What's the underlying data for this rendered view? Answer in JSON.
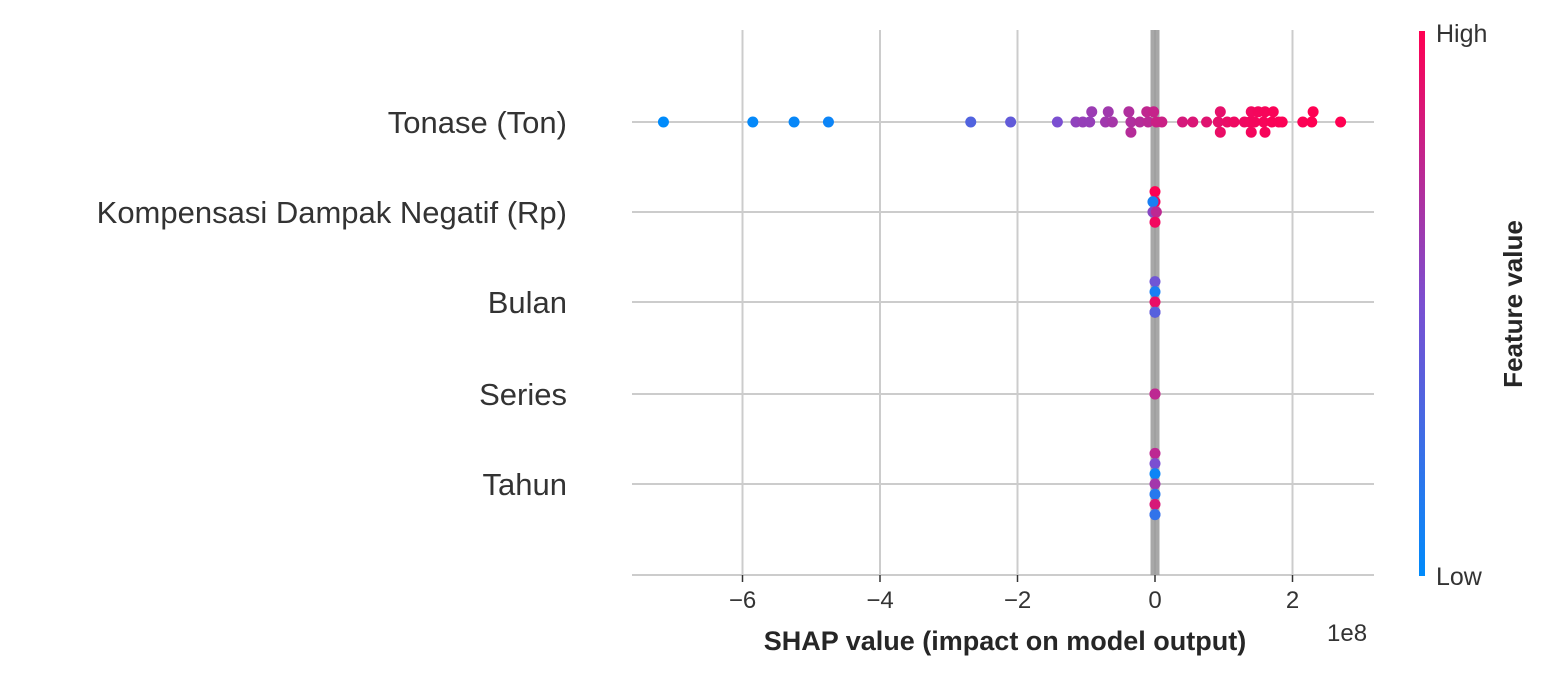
{
  "chart_data": {
    "type": "scatter",
    "subtype": "shap-beeswarm",
    "xlabel": "SHAP value (impact on model output)",
    "x_offset_text": "1e8",
    "x_scale": 100000000,
    "xlim": [
      -7.5,
      3.2
    ],
    "x_ticks": [
      -6,
      -4,
      -2,
      0,
      2
    ],
    "x_tick_labels": [
      "−6",
      "−4",
      "−2",
      "0",
      "2"
    ],
    "grid": true,
    "colors": {
      "low": "#008bfb",
      "high": "#ff0052",
      "zero_line": "#999999",
      "grid": "#cccccc",
      "axis": "#cccccc"
    },
    "colorbar": {
      "title": "Feature value",
      "high_label": "High",
      "low_label": "Low"
    },
    "features": [
      {
        "name": "Tonase (Ton)",
        "points": [
          {
            "x": -7.15,
            "y": 0,
            "v": 0.0
          },
          {
            "x": -5.85,
            "y": 0,
            "v": 0.02
          },
          {
            "x": -5.25,
            "y": 0,
            "v": 0.03
          },
          {
            "x": -4.75,
            "y": 0,
            "v": 0.05
          },
          {
            "x": -2.68,
            "y": 0,
            "v": 0.33
          },
          {
            "x": -2.1,
            "y": 0,
            "v": 0.4
          },
          {
            "x": -1.42,
            "y": 0,
            "v": 0.5
          },
          {
            "x": -1.15,
            "y": 0,
            "v": 0.58
          },
          {
            "x": -1.05,
            "y": 0,
            "v": 0.6
          },
          {
            "x": -0.95,
            "y": 0,
            "v": 0.6
          },
          {
            "x": -0.92,
            "y": 1,
            "v": 0.62
          },
          {
            "x": -0.68,
            "y": 1,
            "v": 0.64
          },
          {
            "x": -0.72,
            "y": 0,
            "v": 0.64
          },
          {
            "x": -0.62,
            "y": 0,
            "v": 0.66
          },
          {
            "x": -0.38,
            "y": 1,
            "v": 0.7
          },
          {
            "x": -0.35,
            "y": 0,
            "v": 0.7
          },
          {
            "x": -0.35,
            "y": -1,
            "v": 0.72
          },
          {
            "x": -0.22,
            "y": 0,
            "v": 0.72
          },
          {
            "x": -0.1,
            "y": 0,
            "v": 0.74
          },
          {
            "x": -0.12,
            "y": 1,
            "v": 0.76
          },
          {
            "x": -0.02,
            "y": 1,
            "v": 0.78
          },
          {
            "x": 0.02,
            "y": 0,
            "v": 0.8
          },
          {
            "x": 0.1,
            "y": 0,
            "v": 0.8
          },
          {
            "x": 0.4,
            "y": 0,
            "v": 0.84
          },
          {
            "x": 0.55,
            "y": 0,
            "v": 0.86
          },
          {
            "x": 0.75,
            "y": 0,
            "v": 0.88
          },
          {
            "x": 0.92,
            "y": 0,
            "v": 0.9
          },
          {
            "x": 0.95,
            "y": 1,
            "v": 0.9
          },
          {
            "x": 0.95,
            "y": -1,
            "v": 0.92
          },
          {
            "x": 1.05,
            "y": 0,
            "v": 0.92
          },
          {
            "x": 1.15,
            "y": 0,
            "v": 0.94
          },
          {
            "x": 1.3,
            "y": 0,
            "v": 0.94
          },
          {
            "x": 1.38,
            "y": 0,
            "v": 0.95
          },
          {
            "x": 1.4,
            "y": 1,
            "v": 0.95
          },
          {
            "x": 1.45,
            "y": 0,
            "v": 0.96
          },
          {
            "x": 1.5,
            "y": 1,
            "v": 0.96
          },
          {
            "x": 1.4,
            "y": -1,
            "v": 0.96
          },
          {
            "x": 1.6,
            "y": 1,
            "v": 0.97
          },
          {
            "x": 1.58,
            "y": 0,
            "v": 0.97
          },
          {
            "x": 1.6,
            "y": -1,
            "v": 0.97
          },
          {
            "x": 1.7,
            "y": 0,
            "v": 0.98
          },
          {
            "x": 1.72,
            "y": 1,
            "v": 0.98
          },
          {
            "x": 1.8,
            "y": 0,
            "v": 0.98
          },
          {
            "x": 1.85,
            "y": 0,
            "v": 0.99
          },
          {
            "x": 2.15,
            "y": 0,
            "v": 0.99
          },
          {
            "x": 2.28,
            "y": 0,
            "v": 1.0
          },
          {
            "x": 2.3,
            "y": 1,
            "v": 1.0
          },
          {
            "x": 2.7,
            "y": 0,
            "v": 1.0
          }
        ]
      },
      {
        "name": "Kompensasi Dampak Negatif (Rp)",
        "points": [
          {
            "x": 0.0,
            "y": 2,
            "v": 1.0
          },
          {
            "x": 0.0,
            "y": 1,
            "v": 0.98
          },
          {
            "x": -0.03,
            "y": 1,
            "v": 0.1
          },
          {
            "x": 0.0,
            "y": 0,
            "v": 0.85
          },
          {
            "x": -0.03,
            "y": 0,
            "v": 0.55
          },
          {
            "x": 0.02,
            "y": 0,
            "v": 0.75
          },
          {
            "x": 0.0,
            "y": -1,
            "v": 0.95
          }
        ]
      },
      {
        "name": "Bulan",
        "points": [
          {
            "x": 0.0,
            "y": 2,
            "v": 0.45
          },
          {
            "x": 0.0,
            "y": 1,
            "v": 0.1
          },
          {
            "x": 0.0,
            "y": 0,
            "v": 0.92
          },
          {
            "x": 0.0,
            "y": -1,
            "v": 0.7
          },
          {
            "x": 0.0,
            "y": -1,
            "v": 0.35
          }
        ]
      },
      {
        "name": "Series",
        "points": [
          {
            "x": 0.0,
            "y": 0,
            "v": 0.95
          },
          {
            "x": 0.0,
            "y": 0,
            "v": 0.75
          }
        ]
      },
      {
        "name": "Tahun",
        "points": [
          {
            "x": 0.0,
            "y": 3,
            "v": 0.75
          },
          {
            "x": 0.0,
            "y": 2,
            "v": 0.5
          },
          {
            "x": 0.0,
            "y": 1,
            "v": 0.05
          },
          {
            "x": 0.0,
            "y": 0,
            "v": 0.65
          },
          {
            "x": 0.0,
            "y": -1,
            "v": 0.15
          },
          {
            "x": 0.0,
            "y": -2,
            "v": 0.85
          },
          {
            "x": 0.0,
            "y": -3,
            "v": 0.4
          },
          {
            "x": 0.0,
            "y": -3,
            "v": 0.2
          }
        ]
      }
    ]
  }
}
